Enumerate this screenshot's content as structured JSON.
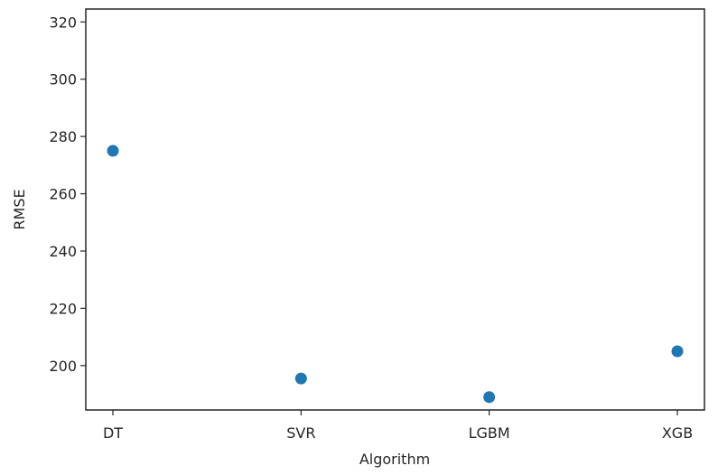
{
  "chart_data": {
    "type": "scatter",
    "title": "",
    "xlabel": "Algorithm",
    "ylabel": "RMSE",
    "categories": [
      "DT",
      "SVR",
      "LGBM",
      "XGB"
    ],
    "values": [
      275,
      195.5,
      189,
      205
    ],
    "ylim": [
      184.5,
      324.5
    ],
    "yticks": [
      200,
      220,
      240,
      260,
      280,
      300,
      320
    ],
    "grid": false,
    "legend": "none",
    "marker_color": "#1f77b4"
  }
}
